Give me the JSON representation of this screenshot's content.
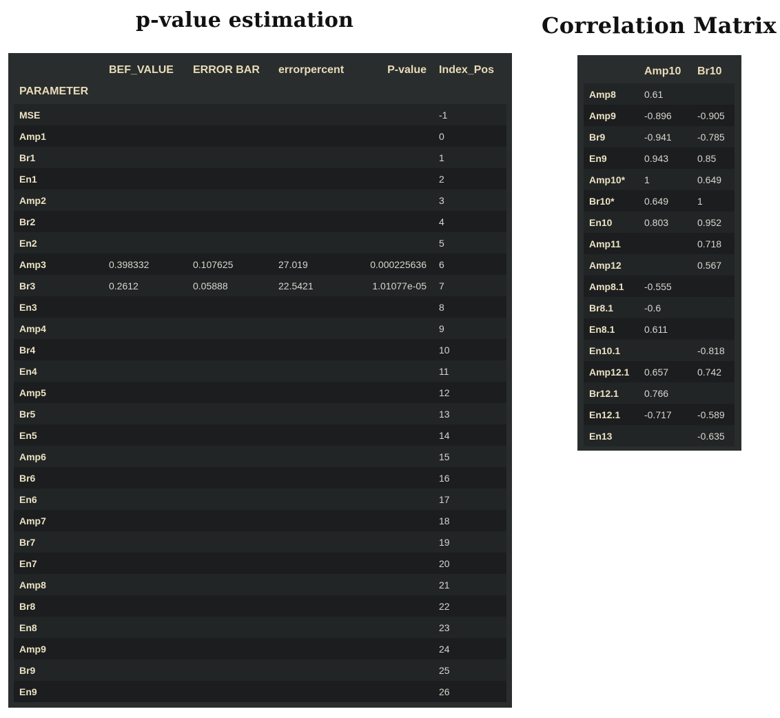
{
  "titles": {
    "pvalue": "p-value estimation",
    "correlation": "Correlation Matrix"
  },
  "pvalue_table": {
    "index_name": "PARAMETER",
    "columns": [
      "BEF_VALUE",
      "ERROR BAR",
      "errorpercent",
      "P-value",
      "Index_Pos"
    ],
    "rows": [
      [
        "MSE",
        "",
        "",
        "",
        "",
        "-1"
      ],
      [
        "Amp1",
        "",
        "",
        "",
        "",
        "0"
      ],
      [
        "Br1",
        "",
        "",
        "",
        "",
        "1"
      ],
      [
        "En1",
        "",
        "",
        "",
        "",
        "2"
      ],
      [
        "Amp2",
        "",
        "",
        "",
        "",
        "3"
      ],
      [
        "Br2",
        "",
        "",
        "",
        "",
        "4"
      ],
      [
        "En2",
        "",
        "",
        "",
        "",
        "5"
      ],
      [
        "Amp3",
        "0.398332",
        "0.107625",
        "27.019",
        "0.000225636",
        "6"
      ],
      [
        "Br3",
        "0.2612",
        "0.05888",
        "22.5421",
        "1.01077e-05",
        "7"
      ],
      [
        "En3",
        "",
        "",
        "",
        "",
        "8"
      ],
      [
        "Amp4",
        "",
        "",
        "",
        "",
        "9"
      ],
      [
        "Br4",
        "",
        "",
        "",
        "",
        "10"
      ],
      [
        "En4",
        "",
        "",
        "",
        "",
        "11"
      ],
      [
        "Amp5",
        "",
        "",
        "",
        "",
        "12"
      ],
      [
        "Br5",
        "",
        "",
        "",
        "",
        "13"
      ],
      [
        "En5",
        "",
        "",
        "",
        "",
        "14"
      ],
      [
        "Amp6",
        "",
        "",
        "",
        "",
        "15"
      ],
      [
        "Br6",
        "",
        "",
        "",
        "",
        "16"
      ],
      [
        "En6",
        "",
        "",
        "",
        "",
        "17"
      ],
      [
        "Amp7",
        "",
        "",
        "",
        "",
        "18"
      ],
      [
        "Br7",
        "",
        "",
        "",
        "",
        "19"
      ],
      [
        "En7",
        "",
        "",
        "",
        "",
        "20"
      ],
      [
        "Amp8",
        "",
        "",
        "",
        "",
        "21"
      ],
      [
        "Br8",
        "",
        "",
        "",
        "",
        "22"
      ],
      [
        "En8",
        "",
        "",
        "",
        "",
        "23"
      ],
      [
        "Amp9",
        "",
        "",
        "",
        "",
        "24"
      ],
      [
        "Br9",
        "",
        "",
        "",
        "",
        "25"
      ],
      [
        "En9",
        "",
        "",
        "",
        "",
        "26"
      ]
    ]
  },
  "correlation_table": {
    "columns": [
      "Amp10",
      "Br10"
    ],
    "rows": [
      [
        "Amp8",
        "0.61",
        ""
      ],
      [
        "Amp9",
        "-0.896",
        "-0.905"
      ],
      [
        "Br9",
        "-0.941",
        "-0.785"
      ],
      [
        "En9",
        "0.943",
        "0.85"
      ],
      [
        "Amp10*",
        "1",
        "0.649"
      ],
      [
        "Br10*",
        "0.649",
        "1"
      ],
      [
        "En10",
        "0.803",
        "0.952"
      ],
      [
        "Amp11",
        "",
        "0.718"
      ],
      [
        "Amp12",
        "",
        "0.567"
      ],
      [
        "Amp8.1",
        "-0.555",
        ""
      ],
      [
        "Br8.1",
        "-0.6",
        ""
      ],
      [
        "En8.1",
        "0.611",
        ""
      ],
      [
        "En10.1",
        "",
        "-0.818"
      ],
      [
        "Amp12.1",
        "0.657",
        "0.742"
      ],
      [
        "Br12.1",
        "0.766",
        ""
      ],
      [
        "En12.1",
        "-0.717",
        "-0.589"
      ],
      [
        "En13",
        "",
        "-0.635"
      ]
    ]
  },
  "colors": {
    "panel_bg": "#2a2d2e",
    "row_odd": "#222526",
    "row_even": "#1b1d1e",
    "header_text": "#e8dcb9",
    "cell_text": "#d8d6cf"
  }
}
